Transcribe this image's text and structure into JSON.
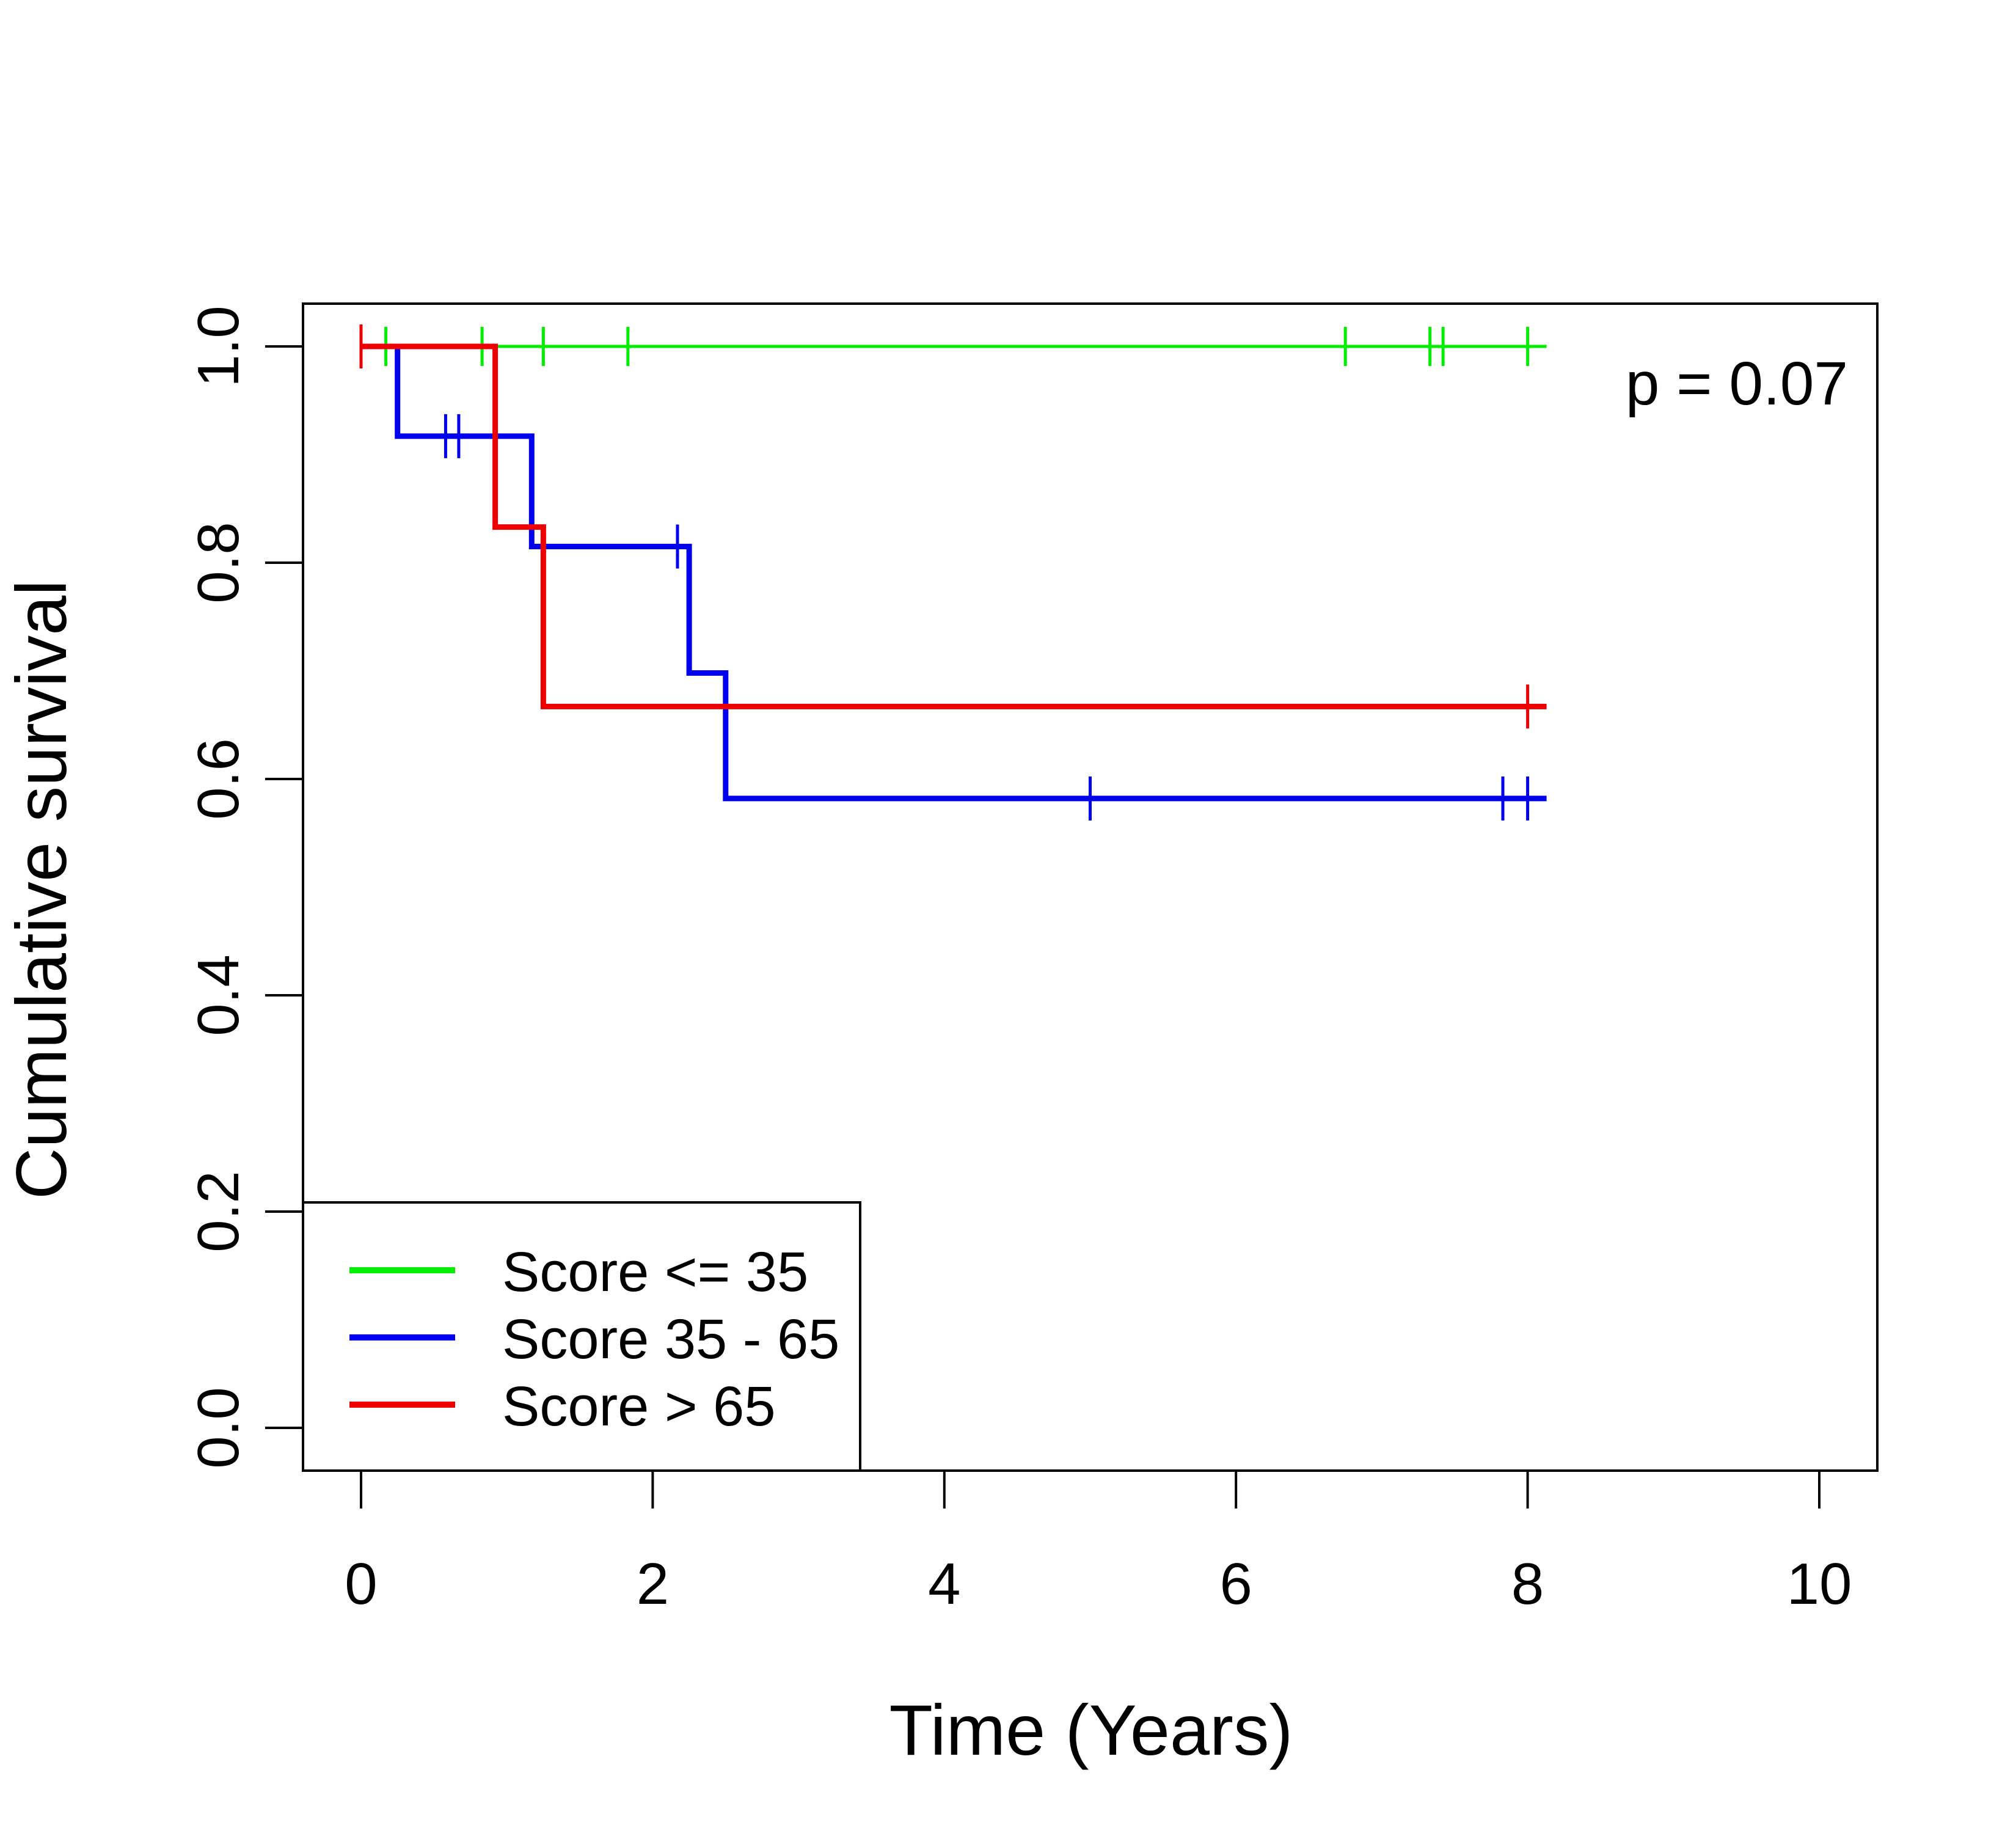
{
  "chart_data": {
    "type": "line",
    "subtype": "kaplan-meier",
    "xlabel": "Time (Years)",
    "ylabel": "Cumulative survival",
    "xlim": [
      0,
      10
    ],
    "ylim": [
      0,
      1
    ],
    "xticks": [
      0,
      2,
      4,
      6,
      8,
      10
    ],
    "yticks": [
      0.0,
      0.2,
      0.4,
      0.6,
      0.8,
      1.0
    ],
    "xtick_labels": [
      "0",
      "2",
      "4",
      "6",
      "8",
      "10"
    ],
    "ytick_labels": [
      "0.0",
      "0.2",
      "0.4",
      "0.6",
      "0.8",
      "1.0"
    ],
    "grid": false,
    "legend_position": "bottom-left",
    "annotation": "p = 0.07",
    "series": [
      {
        "name": "Score <= 35",
        "color": "#00ee00",
        "steps": [
          [
            0,
            1.0
          ],
          [
            8.13,
            1.0
          ]
        ],
        "censored": [
          [
            0.17,
            1.0
          ],
          [
            0.83,
            1.0
          ],
          [
            1.25,
            1.0
          ],
          [
            1.83,
            1.0
          ],
          [
            6.75,
            1.0
          ],
          [
            7.33,
            1.0
          ],
          [
            7.42,
            1.0
          ],
          [
            8.0,
            1.0
          ]
        ]
      },
      {
        "name": "Score 35 - 65",
        "color": "#0000ee",
        "steps": [
          [
            0,
            1.0
          ],
          [
            0.25,
            1.0
          ],
          [
            0.25,
            0.917
          ],
          [
            1.17,
            0.917
          ],
          [
            1.17,
            0.815
          ],
          [
            2.25,
            0.815
          ],
          [
            2.25,
            0.698
          ],
          [
            2.5,
            0.698
          ],
          [
            2.5,
            0.582
          ],
          [
            8.13,
            0.582
          ]
        ],
        "censored": [
          [
            0.58,
            0.917
          ],
          [
            0.67,
            0.917
          ],
          [
            2.17,
            0.815
          ],
          [
            5.0,
            0.582
          ],
          [
            7.83,
            0.582
          ],
          [
            8.0,
            0.582
          ]
        ]
      },
      {
        "name": "Score > 65",
        "color": "#ee0000",
        "steps": [
          [
            0,
            1.0
          ],
          [
            0.92,
            1.0
          ],
          [
            0.92,
            0.833
          ],
          [
            1.25,
            0.833
          ],
          [
            1.25,
            0.667
          ],
          [
            8.13,
            0.667
          ]
        ],
        "censored": [
          [
            0.0,
            1.0
          ],
          [
            8.0,
            0.667
          ]
        ]
      }
    ]
  }
}
